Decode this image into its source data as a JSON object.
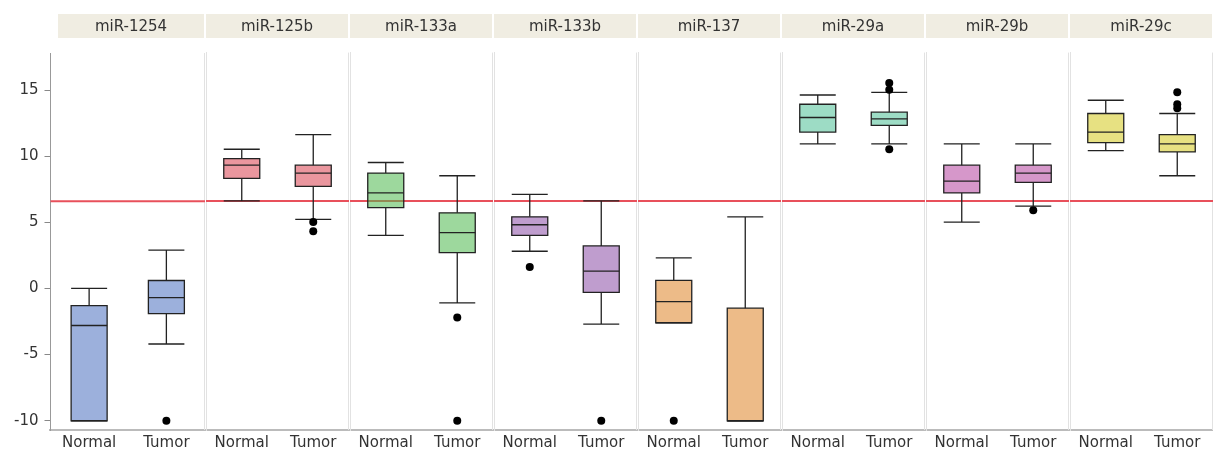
{
  "chart_data": [
    {
      "type": "box",
      "title": "miR-1254",
      "categories": [
        "Normal",
        "Tumor"
      ],
      "ylim": [
        -10.7,
        17.8
      ],
      "yticks": [
        -10,
        -5,
        0,
        5,
        10,
        15
      ],
      "grid": false,
      "ref_lines": [
        {
          "axis": "y",
          "value": 6.6,
          "color": "#e8505b"
        }
      ],
      "series": [
        {
          "color": "#4a6fbf",
          "boxes": [
            {
              "low": -10,
              "q1": -10,
              "median": -2.8,
              "q3": -1.3,
              "high": 0
            },
            {
              "low": -4.2,
              "q1": -1.9,
              "median": -0.7,
              "q3": 0.6,
              "high": 2.9,
              "outliers": [
                -10
              ]
            }
          ]
        }
      ]
    },
    {
      "type": "box",
      "title": "miR-125b",
      "categories": [
        "Normal",
        "Tumor"
      ],
      "ylim": [
        -10.7,
        17.8
      ],
      "yticks": [
        -10,
        -5,
        0,
        5,
        10,
        15
      ],
      "grid": false,
      "tick_labels": "x",
      "ref_lines": [
        {
          "axis": "y",
          "value": 6.6,
          "color": "#e8505b"
        }
      ],
      "series": [
        {
          "color": "#d9404f",
          "boxes": [
            {
              "low": 6.6,
              "q1": 8.3,
              "median": 9.3,
              "q3": 9.8,
              "high": 10.5
            },
            {
              "low": 5.2,
              "q1": 7.7,
              "median": 8.7,
              "q3": 9.3,
              "high": 11.6,
              "outliers": [
                5,
                4.3
              ]
            }
          ]
        }
      ]
    },
    {
      "type": "box",
      "title": "miR-133a",
      "categories": [
        "Normal",
        "Tumor"
      ],
      "ylim": [
        -10.7,
        17.8
      ],
      "yticks": [
        -10,
        -5,
        0,
        5,
        10,
        15
      ],
      "grid": false,
      "tick_labels": "x",
      "ref_lines": [
        {
          "axis": "y",
          "value": 6.6,
          "color": "#e8505b"
        }
      ],
      "series": [
        {
          "color": "#4cb84c",
          "boxes": [
            {
              "low": 4,
              "q1": 6.1,
              "median": 7.2,
              "q3": 8.7,
              "high": 9.5
            },
            {
              "low": -1.1,
              "q1": 2.7,
              "median": 4.2,
              "q3": 5.7,
              "high": 8.5,
              "outliers": [
                -2.2,
                -10
              ]
            }
          ]
        }
      ]
    },
    {
      "type": "box",
      "title": "miR-133b",
      "categories": [
        "Normal",
        "Tumor"
      ],
      "ylim": [
        -10.7,
        17.8
      ],
      "yticks": [
        -10,
        -5,
        0,
        5,
        10,
        15
      ],
      "grid": false,
      "tick_labels": "x",
      "ref_lines": [
        {
          "axis": "y",
          "value": 6.6,
          "color": "#e8505b"
        }
      ],
      "series": [
        {
          "color": "#8b4ca6",
          "boxes": [
            {
              "low": 2.8,
              "q1": 4,
              "median": 4.8,
              "q3": 5.4,
              "high": 7.1,
              "outliers": [
                1.6
              ]
            },
            {
              "low": -2.7,
              "q1": -0.3,
              "median": 1.3,
              "q3": 3.2,
              "high": 6.6,
              "outliers": [
                -10
              ]
            }
          ]
        }
      ]
    },
    {
      "type": "box",
      "title": "miR-137",
      "categories": [
        "Normal",
        "Tumor"
      ],
      "ylim": [
        -10.7,
        17.8
      ],
      "yticks": [
        -10,
        -5,
        0,
        5,
        10,
        15
      ],
      "grid": false,
      "tick_labels": "x",
      "ref_lines": [
        {
          "axis": "y",
          "value": 6.6,
          "color": "#e8505b"
        }
      ],
      "series": [
        {
          "color": "#de8426",
          "boxes": [
            {
              "low": -2.6,
              "q1": -2.6,
              "median": -1,
              "q3": 0.6,
              "high": 2.3,
              "outliers": [
                -10
              ]
            },
            {
              "low": -10,
              "q1": -10,
              "median": -10,
              "q3": -1.5,
              "high": 5.4
            }
          ]
        }
      ]
    },
    {
      "type": "box",
      "title": "miR-29a",
      "categories": [
        "Normal",
        "Tumor"
      ],
      "ylim": [
        -10.7,
        17.8
      ],
      "yticks": [
        -10,
        -5,
        0,
        5,
        10,
        15
      ],
      "grid": false,
      "tick_labels": "x",
      "ref_lines": [
        {
          "axis": "y",
          "value": 6.6,
          "color": "#e8505b"
        }
      ],
      "series": [
        {
          "color": "#4dbf96",
          "boxes": [
            {
              "low": 10.9,
              "q1": 11.8,
              "median": 12.9,
              "q3": 13.9,
              "high": 14.6
            },
            {
              "low": 10.9,
              "q1": 12.3,
              "median": 12.8,
              "q3": 13.3,
              "high": 14.8,
              "outliers": [
                15.5,
                15,
                10.5
              ]
            }
          ]
        }
      ]
    },
    {
      "type": "box",
      "title": "miR-29b",
      "categories": [
        "Normal",
        "Tumor"
      ],
      "ylim": [
        -10.7,
        17.8
      ],
      "yticks": [
        -10,
        -5,
        0,
        5,
        10,
        15
      ],
      "grid": false,
      "tick_labels": "x",
      "ref_lines": [
        {
          "axis": "y",
          "value": 6.6,
          "color": "#e8505b"
        }
      ],
      "series": [
        {
          "color": "#b4419e",
          "boxes": [
            {
              "low": 5,
              "q1": 7.2,
              "median": 8.1,
              "q3": 9.3,
              "high": 10.9
            },
            {
              "low": 6.2,
              "q1": 8,
              "median": 8.7,
              "q3": 9.3,
              "high": 10.9,
              "outliers": [
                5.9
              ]
            }
          ]
        }
      ]
    },
    {
      "type": "box",
      "title": "miR-29c",
      "categories": [
        "Normal",
        "Tumor"
      ],
      "ylim": [
        -10.7,
        17.8
      ],
      "yticks": [
        -10,
        -5,
        0,
        5,
        10,
        15
      ],
      "grid": false,
      "tick_labels": "x",
      "ref_lines": [
        {
          "axis": "y",
          "value": 6.6,
          "color": "#e8505b"
        }
      ],
      "series": [
        {
          "color": "#d4c81c",
          "boxes": [
            {
              "low": 10.4,
              "q1": 11,
              "median": 11.8,
              "q3": 13.2,
              "high": 14.2
            },
            {
              "low": 8.5,
              "q1": 10.3,
              "median": 10.9,
              "q3": 11.6,
              "high": 13.2,
              "outliers": [
                14.8,
                13.9,
                13.6
              ]
            }
          ]
        }
      ]
    }
  ]
}
